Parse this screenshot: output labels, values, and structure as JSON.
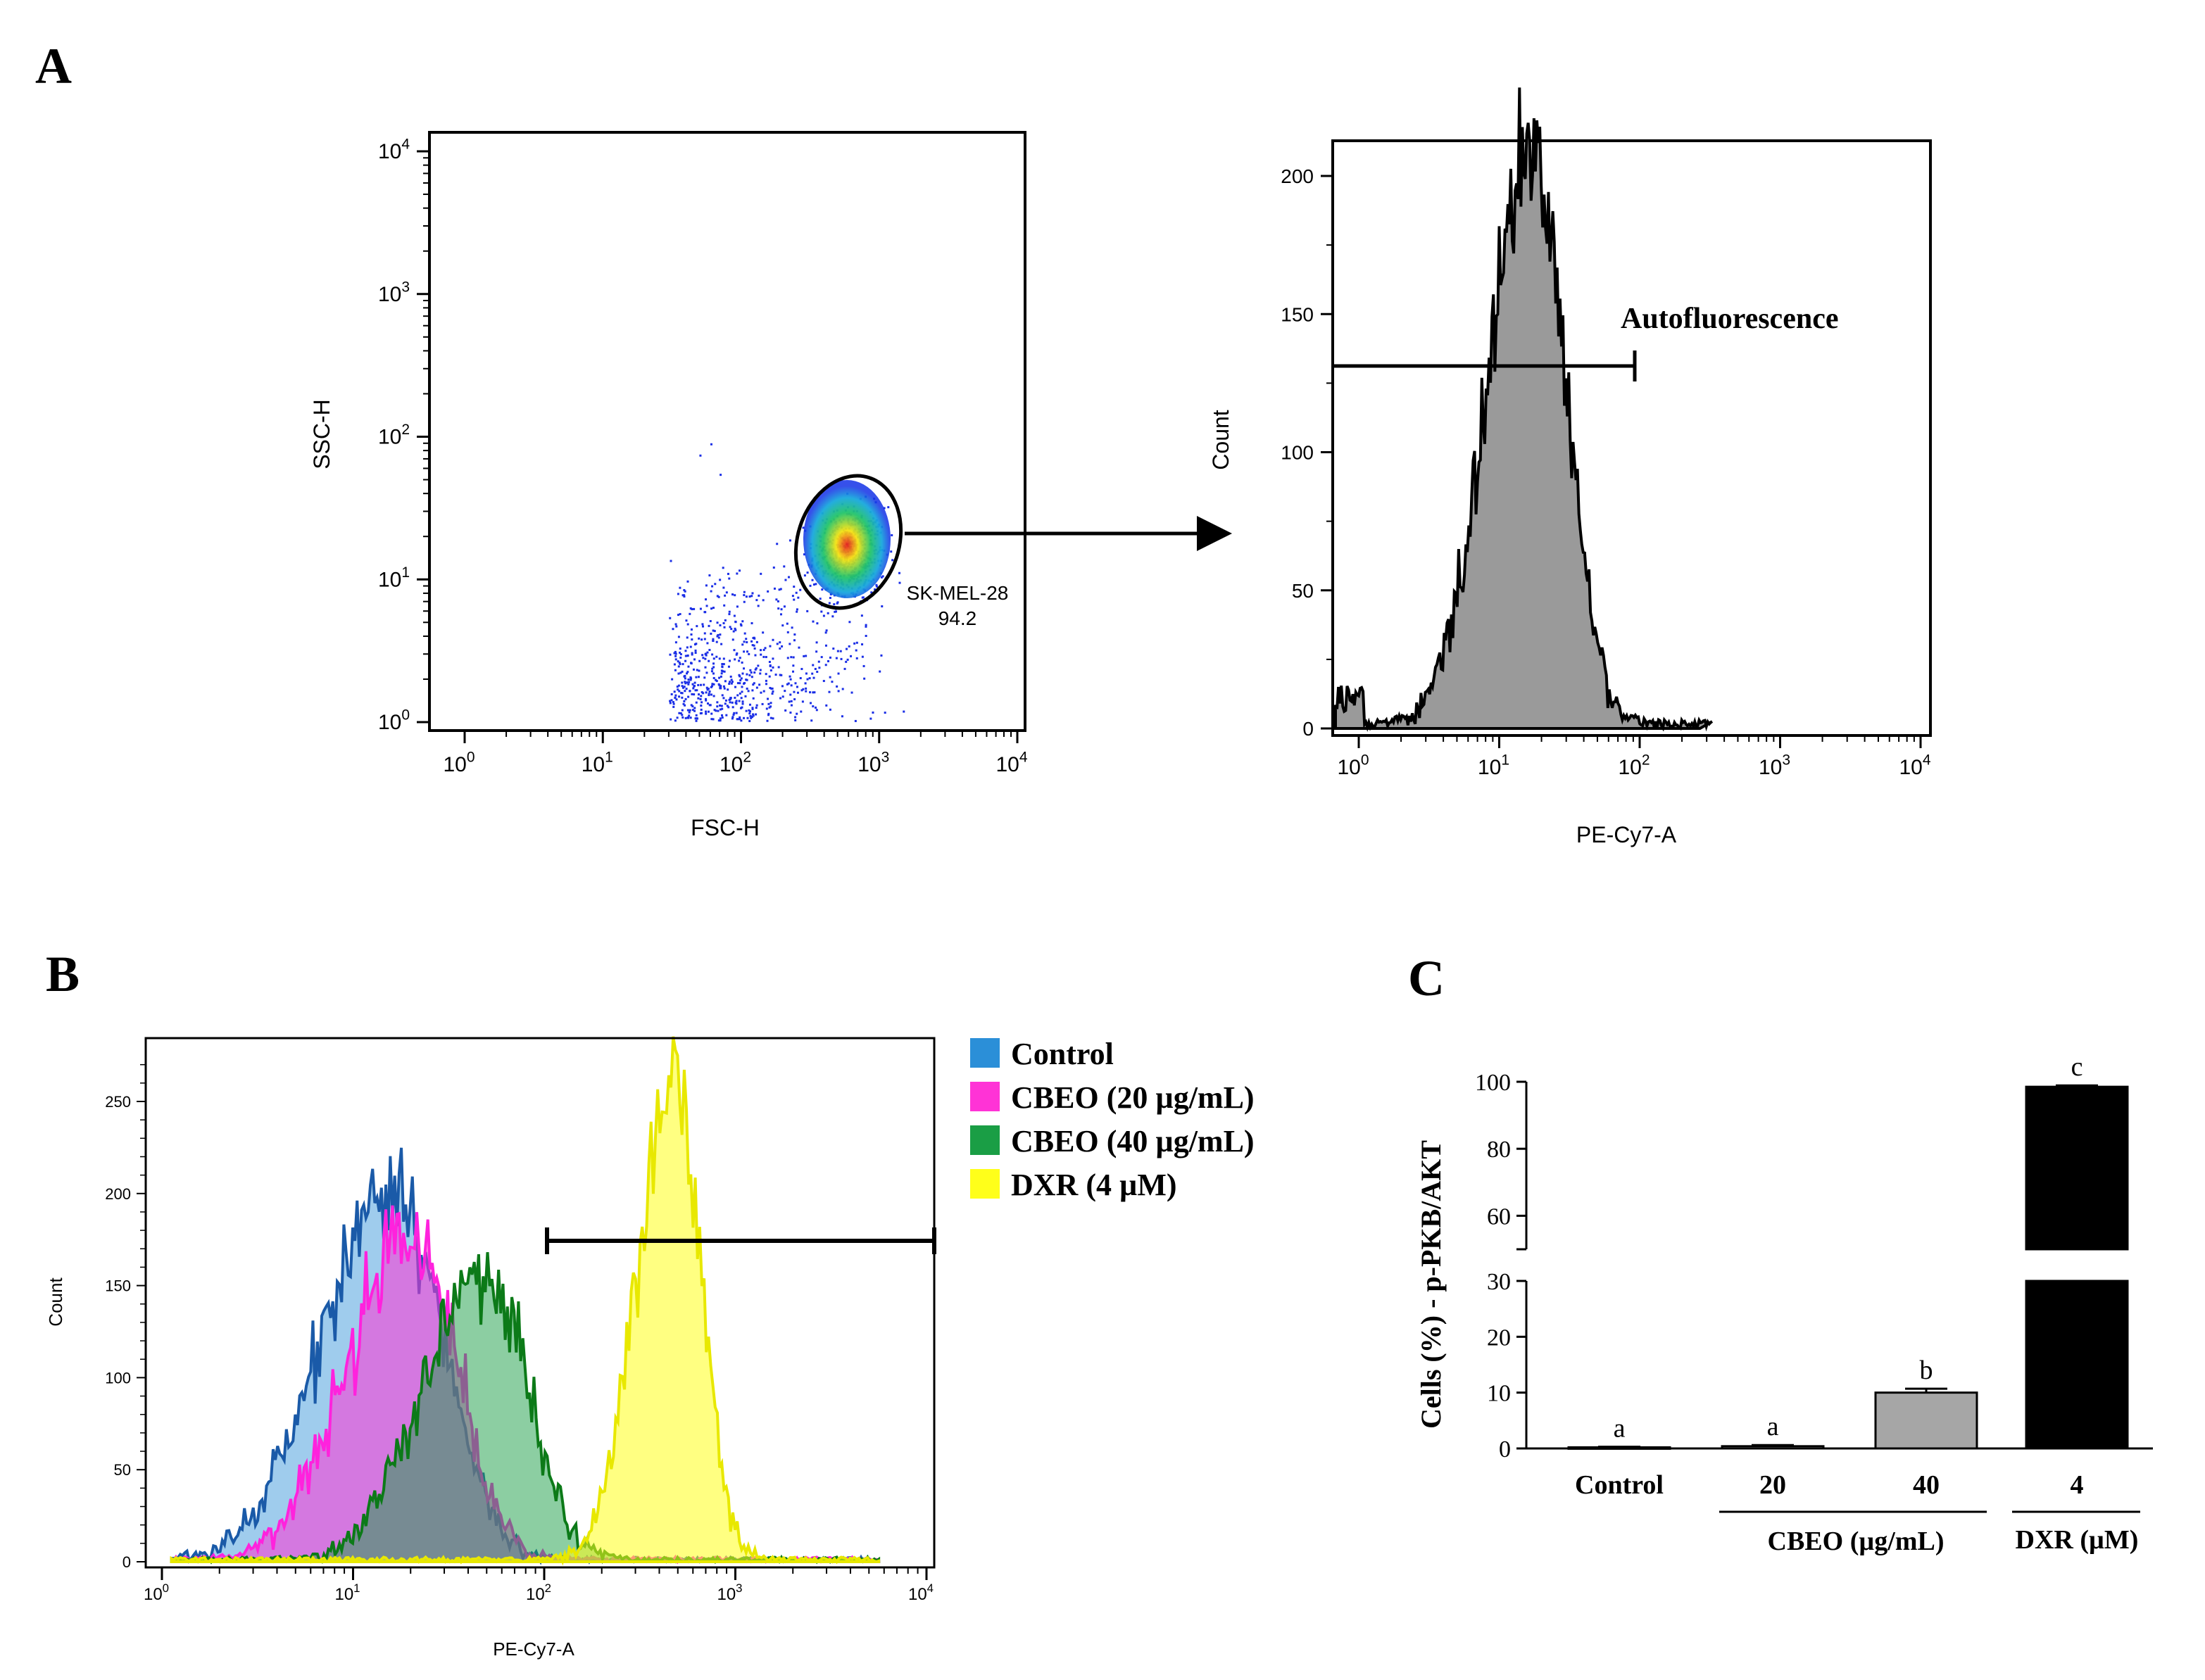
{
  "panels": {
    "a": "A",
    "b": "B",
    "c": "C"
  },
  "scatter": {
    "xlabel": "FSC-H",
    "ylabel": "SSC-H",
    "gate_label": "SK-MEL-28",
    "gate_value": "94.2"
  },
  "histA": {
    "xlabel": "PE-Cy7-A",
    "ylabel": "Count",
    "gate_label": "Autofluorescence"
  },
  "histB": {
    "xlabel": "PE-Cy7-A",
    "ylabel": "Count"
  },
  "legend": [
    {
      "label": "Control",
      "color": "#2b8fd8"
    },
    {
      "label": "CBEO (20 µg/mL)",
      "color": "#ff33d6"
    },
    {
      "label": "CBEO (40 µg/mL)",
      "color": "#1a9e45"
    },
    {
      "label": "DXR (4 µM)",
      "color": "#ffff1a"
    }
  ],
  "barC": {
    "ylabel": "Cells (%) - p-PKB/AKT",
    "group_cbeo": "CBEO (µg/mL)",
    "group_dxr": "DXR (µM)",
    "categories": [
      "Control",
      "20",
      "40",
      "4"
    ],
    "letters": [
      "a",
      "a",
      "b",
      "c"
    ]
  },
  "chart_data": [
    {
      "type": "scatter",
      "title": "",
      "xlabel": "FSC-H",
      "ylabel": "SSC-H",
      "xscale": "log",
      "yscale": "log",
      "xlim": [
        1,
        10000
      ],
      "ylim": [
        1,
        10000
      ],
      "x_ticks": [
        "10^0",
        "10^1",
        "10^2",
        "10^3",
        "10^4"
      ],
      "y_ticks": [
        "10^0",
        "10^1",
        "10^2",
        "10^3",
        "10^4"
      ],
      "gate": {
        "name": "SK-MEL-28",
        "percent": 94.2,
        "center": [
          600,
          15
        ]
      }
    },
    {
      "type": "area",
      "title": "",
      "xlabel": "PE-Cy7-A",
      "ylabel": "Count",
      "xscale": "log",
      "xlim": [
        1,
        10000
      ],
      "ylim": [
        0,
        220
      ],
      "y_ticks": [
        0,
        50,
        100,
        150,
        200
      ],
      "x_ticks": [
        "10^0",
        "10^1",
        "10^2",
        "10^3",
        "10^4"
      ],
      "series": [
        {
          "name": "Autofluorescence",
          "mode": 18,
          "peak": 210,
          "spread": 0.26
        }
      ],
      "gate": {
        "name": "Autofluorescence",
        "range": [
          1,
          100
        ],
        "y": 137
      }
    },
    {
      "type": "area",
      "title": "",
      "xlabel": "PE-Cy7-A",
      "ylabel": "Count",
      "xscale": "log",
      "xlim": [
        0.8,
        12000
      ],
      "ylim": [
        0,
        275
      ],
      "y_ticks": [
        0,
        50,
        100,
        150,
        200,
        250
      ],
      "x_ticks": [
        "10^0",
        "10^1",
        "10^2",
        "10^3",
        "10^4"
      ],
      "series": [
        {
          "name": "Control",
          "mode": 16,
          "peak": 205,
          "spread": 0.3
        },
        {
          "name": "CBEO (20 µg/mL)",
          "mode": 20,
          "peak": 185,
          "spread": 0.27
        },
        {
          "name": "CBEO (40 µg/mL)",
          "mode": 48,
          "peak": 160,
          "spread": 0.26
        },
        {
          "name": "DXR (4 µM)",
          "mode": 480,
          "peak": 262,
          "spread": 0.16
        }
      ],
      "gate": {
        "range": [
          110,
          10000
        ],
        "y": 172
      }
    },
    {
      "type": "bar",
      "title": "",
      "xlabel": "",
      "ylabel": "Cells (%) - p-PKB/AKT",
      "categories": [
        "Control",
        "20",
        "40",
        "4"
      ],
      "groups": [
        {
          "name": "CBEO (µg/mL)",
          "categories": [
            "20",
            "40"
          ]
        },
        {
          "name": "DXR (µM)",
          "categories": [
            "4"
          ]
        }
      ],
      "values": [
        0.2,
        0.4,
        10.0,
        98.5
      ],
      "errors": [
        0.1,
        0.2,
        0.7,
        0.4
      ],
      "letters": [
        "a",
        "a",
        "b",
        "c"
      ],
      "colors": [
        "#ffffff",
        "#ffffff",
        "#a6a6a6",
        "#000000"
      ],
      "axis_break": [
        30,
        50
      ],
      "ylim": [
        0,
        100
      ],
      "y_ticks": [
        0,
        10,
        20,
        30,
        60,
        80,
        100
      ]
    }
  ]
}
